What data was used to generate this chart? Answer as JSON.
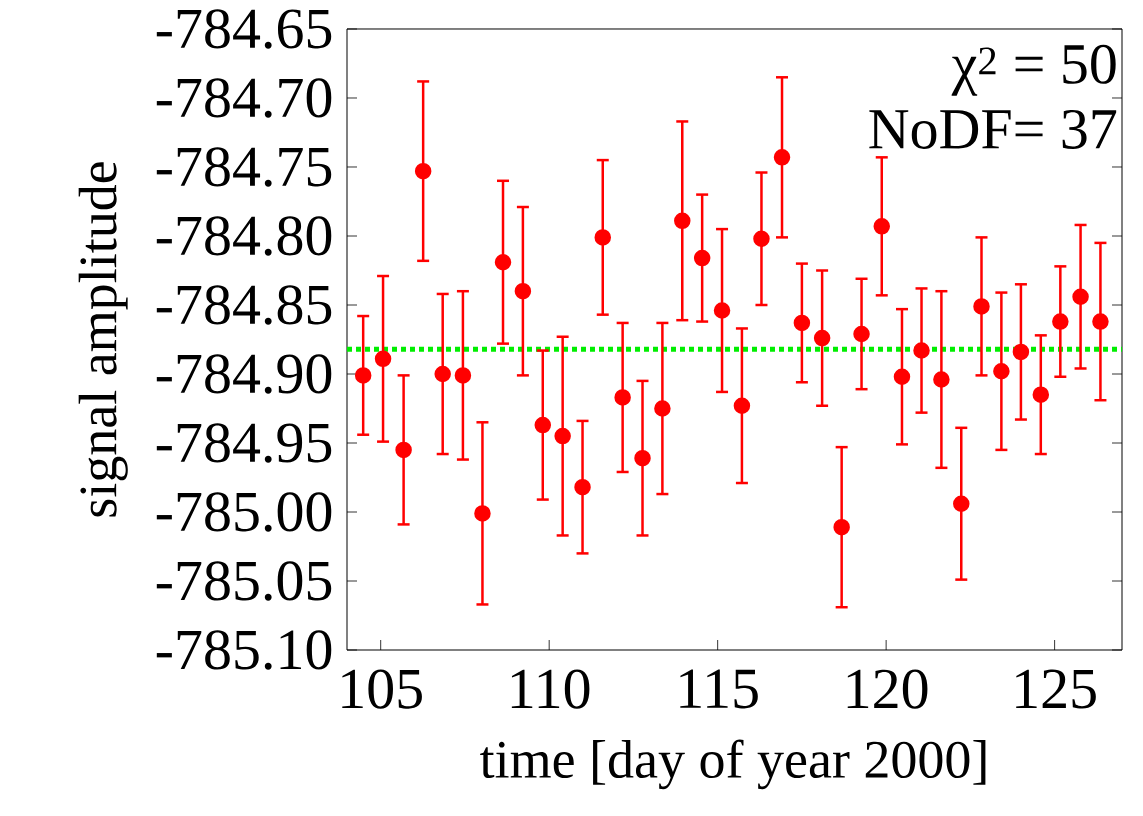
{
  "chart_data": {
    "type": "scatter",
    "xlabel": "time [day of year 2000]",
    "ylabel": "signal amplitude",
    "annotations": [
      "χ$^{2}$ = 50",
      "NoDF= 37"
    ],
    "x": [
      104.48,
      105.07,
      105.68,
      106.26,
      106.84,
      107.44,
      108.02,
      108.63,
      109.22,
      109.81,
      110.4,
      110.99,
      111.59,
      112.18,
      112.77,
      113.36,
      113.95,
      114.54,
      115.13,
      115.72,
      116.3,
      116.91,
      117.5,
      118.1,
      118.68,
      119.27,
      119.87,
      120.47,
      121.05,
      121.64,
      122.23,
      122.83,
      123.42,
      124.0,
      124.59,
      125.17,
      125.77,
      126.36
    ],
    "series": [
      {
        "color": "#ff0000",
        "values": [
          -784.901,
          -784.889,
          -784.955,
          -784.753,
          -784.9,
          -784.901,
          -785.001,
          -784.819,
          -784.84,
          -784.937,
          -784.945,
          -784.982,
          -784.801,
          -784.917,
          -784.961,
          -784.925,
          -784.789,
          -784.816,
          -784.854,
          -784.923,
          -784.802,
          -784.743,
          -784.863,
          -784.874,
          -785.011,
          -784.871,
          -784.793,
          -784.902,
          -784.883,
          -784.904,
          -784.994,
          -784.851,
          -784.898,
          -784.884,
          -784.915,
          -784.862,
          -784.844,
          -784.862
        ],
        "errors": [
          0.043,
          0.06,
          0.054,
          0.065,
          0.058,
          0.061,
          0.066,
          0.059,
          0.061,
          0.054,
          0.072,
          0.048,
          0.056,
          0.054,
          0.056,
          0.062,
          0.072,
          0.046,
          0.059,
          0.056,
          0.048,
          0.058,
          0.043,
          0.049,
          0.058,
          0.04,
          0.05,
          0.049,
          0.045,
          0.064,
          0.055,
          0.05,
          0.057,
          0.049,
          0.043,
          0.04,
          0.052,
          0.057
        ]
      }
    ],
    "marker": "circle",
    "ref_lines": [
      {
        "axis": "y",
        "value": -784.882,
        "color": "#00ee00",
        "line_style": "dotted"
      }
    ],
    "xlim": [
      104,
      127
    ],
    "ylim": [
      -785.1,
      -784.65
    ],
    "xticks": [
      105,
      110,
      115,
      120,
      125
    ],
    "yticks": [
      {
        "value": -785.1,
        "label": "-785.10"
      },
      {
        "value": -785.05,
        "label": "-785.05"
      },
      {
        "value": -785.0,
        "label": "-785.00"
      },
      {
        "value": -784.95,
        "label": "-784.95"
      },
      {
        "value": -784.9,
        "label": "-784.90"
      },
      {
        "value": -784.85,
        "label": "-784.85"
      },
      {
        "value": -784.8,
        "label": "-784.80"
      },
      {
        "value": -784.75,
        "label": "-784.75"
      },
      {
        "value": -784.7,
        "label": "-784.70"
      },
      {
        "value": -784.65,
        "label": "-784.65"
      }
    ],
    "grid": false
  }
}
